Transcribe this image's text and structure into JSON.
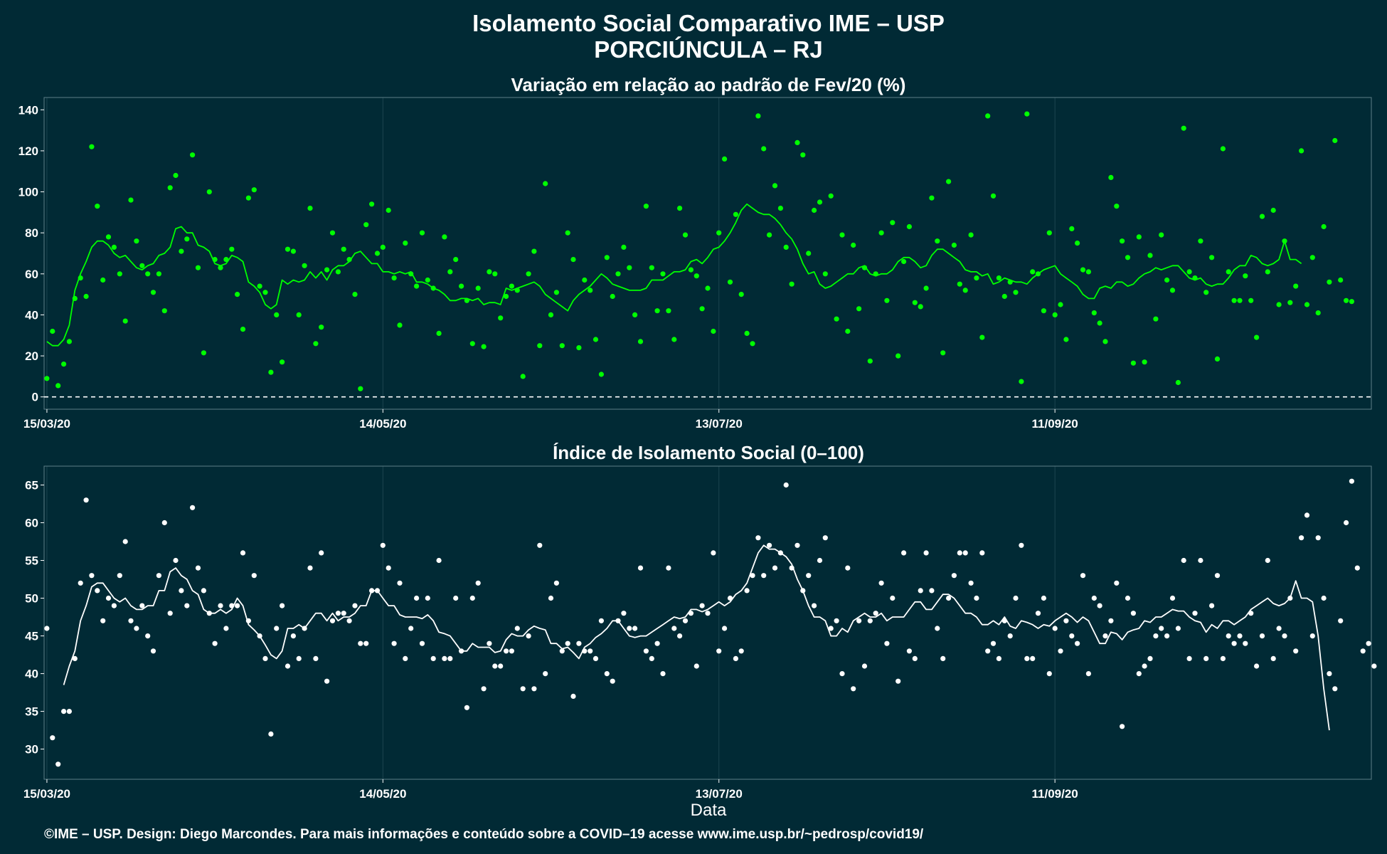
{
  "title_line1": "Isolamento Social Comparativo IME – USP",
  "title_line2": "PORCIÚNCULA – RJ",
  "xlabel": "Data",
  "footer": "©IME – USP. Design: Diego Marcondes. Para mais informações e conteúdo sobre a COVID–19 acesse www.ime.usp.br/~pedrosp/covid19/",
  "colors": {
    "background": "#012a35",
    "series_top": "#00ff00",
    "series_bottom": "#ffffff",
    "grid": "#1c4550"
  },
  "chart_data": [
    {
      "type": "scatter",
      "title": "Variação em relação ao padrão de Fev/20 (%)",
      "x_start": "15/03/20",
      "x_ticks": [
        "15/03/20",
        "14/05/20",
        "13/07/20",
        "11/09/20"
      ],
      "y_ticks": [
        0,
        20,
        40,
        60,
        80,
        100,
        120,
        140
      ],
      "ylim": [
        -6,
        146
      ],
      "xlim_days": [
        -0.5,
        236.5
      ],
      "reference_line_y": 0,
      "points": [
        9,
        32,
        5.5,
        16,
        27,
        48,
        58,
        49,
        122,
        93,
        57,
        78,
        73,
        60,
        37,
        96,
        76,
        64,
        60,
        51,
        60,
        42,
        102,
        108,
        71,
        77,
        118,
        63,
        21.5,
        100,
        67,
        63,
        67,
        72,
        50,
        33,
        97,
        101,
        54,
        51,
        12,
        40,
        17,
        72,
        71,
        40,
        64,
        92,
        26,
        34,
        62,
        80,
        61,
        72,
        67,
        50,
        4,
        84,
        94,
        70,
        73,
        91,
        58,
        35,
        75,
        60,
        54,
        80,
        57,
        53,
        31,
        78,
        61,
        67,
        54,
        47,
        26,
        53,
        24.5,
        61,
        60,
        38.5,
        49,
        54,
        52,
        10,
        60,
        71,
        25,
        104,
        40,
        51,
        25,
        80,
        67,
        24,
        57,
        52,
        28,
        11,
        68,
        49,
        60,
        73,
        63,
        40,
        27,
        93,
        63,
        42,
        60,
        42,
        28,
        92,
        79,
        62,
        59,
        43,
        53,
        32,
        80,
        116,
        56,
        89,
        50,
        31,
        26,
        137,
        121,
        79,
        103,
        92,
        73,
        55,
        124,
        118,
        70,
        91,
        95,
        60,
        98,
        38,
        79,
        32,
        74,
        43,
        63,
        17.5,
        60,
        80,
        47,
        85,
        20,
        66,
        83,
        46,
        44,
        53,
        97,
        76,
        21.5,
        105,
        74,
        55,
        52,
        79,
        58,
        29,
        137,
        98,
        58,
        49,
        56,
        51,
        7.5,
        138,
        61,
        60,
        42,
        80,
        40,
        45,
        28,
        82,
        75,
        62,
        61,
        41,
        36,
        27,
        107,
        93,
        76,
        68,
        16.5,
        78,
        17,
        69,
        38,
        79,
        57,
        52,
        7,
        131,
        61,
        58,
        76,
        51,
        68,
        18.5,
        121,
        61,
        47,
        47,
        59,
        47,
        29,
        88,
        61,
        91,
        45,
        76,
        46,
        54,
        120,
        45,
        68,
        41,
        83,
        56,
        125,
        57,
        47,
        46.5
      ],
      "ma_start_day": 0,
      "moving_average": [
        27,
        25,
        25,
        28,
        35,
        52,
        60,
        66,
        73,
        76,
        76,
        74,
        70,
        68,
        69,
        66,
        63,
        62,
        64,
        65,
        69,
        70,
        73,
        82,
        83,
        80,
        80,
        74,
        73,
        71,
        65,
        64,
        65,
        69,
        68,
        66,
        56,
        54,
        51,
        45,
        43,
        45,
        57,
        55,
        57,
        56,
        57,
        61,
        58,
        61,
        57,
        62,
        64,
        64,
        66,
        70,
        71,
        68,
        65,
        65,
        61,
        61,
        60,
        61,
        60,
        61,
        56,
        56,
        55,
        53,
        52,
        50,
        47,
        47,
        48,
        48,
        47,
        48,
        45,
        46,
        46,
        45,
        53,
        52,
        53,
        54,
        55,
        56,
        54,
        50,
        48,
        46,
        44,
        42,
        47,
        50,
        52,
        54,
        57,
        60,
        58,
        55,
        54,
        53,
        52,
        52,
        52,
        53,
        57,
        57,
        57,
        59,
        61,
        61,
        62,
        66,
        67,
        65,
        68,
        72,
        73,
        76,
        80,
        85,
        91,
        94,
        92,
        90,
        89,
        89,
        87,
        84,
        80,
        77,
        72,
        65,
        60,
        61,
        55,
        53,
        54,
        56,
        58,
        60,
        60,
        63,
        64,
        60,
        59,
        60,
        60,
        62,
        66,
        68,
        68,
        66,
        63,
        64,
        69,
        72,
        72,
        70,
        68,
        66,
        62,
        61,
        61,
        59,
        60,
        55,
        56,
        58,
        57,
        56,
        56,
        55,
        58,
        60,
        62,
        63,
        64,
        60,
        58,
        56,
        54,
        50,
        48,
        48,
        53,
        54,
        53,
        56,
        56,
        54,
        55,
        58,
        60,
        61,
        63,
        62,
        63,
        64,
        64,
        61,
        58,
        57,
        58,
        55,
        54,
        55,
        55,
        58,
        62,
        64,
        64,
        69,
        68,
        65,
        64,
        65,
        67,
        76,
        67,
        67,
        65
      ]
    },
    {
      "type": "scatter",
      "title": "Índice de Isolamento Social (0–100)",
      "x_start": "15/03/20",
      "x_ticks": [
        "15/03/20",
        "14/05/20",
        "13/07/20",
        "11/09/20"
      ],
      "y_ticks": [
        30,
        35,
        40,
        45,
        50,
        55,
        60,
        65
      ],
      "ylim": [
        26,
        67.5
      ],
      "xlim_days": [
        -0.5,
        236.5
      ],
      "points": [
        46,
        31.5,
        28,
        35,
        35,
        42,
        52,
        63,
        53,
        51,
        47,
        50,
        49,
        53,
        57.5,
        47,
        46,
        49,
        45,
        43,
        53,
        60,
        48,
        55,
        51,
        49,
        62,
        54,
        51,
        48,
        44,
        49,
        46,
        49,
        49,
        56,
        47,
        53,
        45,
        42,
        32,
        46,
        49,
        41,
        45,
        42,
        46,
        54,
        42,
        56,
        39,
        47,
        48,
        48,
        47,
        49,
        44,
        44,
        51,
        51,
        57,
        54,
        44,
        52,
        42,
        46,
        50,
        44,
        50,
        42,
        55,
        42,
        42,
        50,
        43,
        35.5,
        50,
        52,
        38,
        44,
        41,
        41,
        43,
        43,
        46,
        38,
        45,
        38,
        57,
        40,
        50,
        52,
        43,
        44,
        37,
        44,
        43,
        43,
        42,
        47,
        40,
        39,
        47,
        48,
        46,
        46,
        54,
        43,
        42,
        44,
        40,
        54,
        46,
        45,
        47,
        48,
        41,
        49,
        48,
        56,
        43,
        46,
        50,
        42,
        43,
        51,
        53,
        58,
        53,
        57,
        54,
        56,
        65,
        54,
        57,
        51,
        53,
        49,
        55,
        58,
        46,
        47,
        40,
        54,
        38,
        47,
        41,
        47,
        48,
        52,
        44,
        50,
        39,
        56,
        43,
        42,
        51,
        56,
        51,
        46,
        42,
        50,
        53,
        56,
        56,
        52,
        50,
        56,
        43,
        44,
        42,
        47,
        45,
        50,
        57,
        42,
        42,
        48,
        50,
        40,
        46,
        43,
        47,
        45,
        44,
        53,
        40,
        50,
        49,
        45,
        47,
        52,
        33,
        50,
        48,
        40,
        41,
        42,
        45,
        46,
        45,
        50,
        46,
        55,
        42,
        48,
        55,
        42,
        49,
        53,
        42,
        45,
        44,
        45,
        44,
        48,
        41,
        45,
        55,
        42,
        46,
        45,
        50,
        43,
        58,
        61,
        45,
        58,
        50,
        40,
        38,
        47,
        60,
        65.5,
        54,
        43,
        44,
        41
      ],
      "ma_start_day": 3,
      "moving_average": [
        38.5,
        41,
        43,
        47,
        49,
        51.5,
        52,
        52,
        51,
        50,
        49.5,
        50,
        49,
        48.5,
        48.5,
        49,
        49,
        51,
        51,
        53.5,
        54,
        53,
        52.5,
        51,
        50.5,
        48.5,
        48,
        48,
        48.5,
        48,
        48.5,
        50,
        49,
        46.5,
        45.8,
        45,
        43.8,
        42.5,
        42,
        43,
        46,
        46,
        46.5,
        46,
        47,
        48,
        48,
        47,
        48,
        47,
        47.5,
        47.5,
        48,
        49,
        49,
        51,
        51,
        50,
        49,
        49,
        47.8,
        47.5,
        47.5,
        47.5,
        47.3,
        47.8,
        47,
        45.5,
        45.3,
        45,
        44,
        43,
        43,
        44,
        43.5,
        43.5,
        43.5,
        42.8,
        43,
        44.5,
        45.3,
        45,
        45,
        45.8,
        46.3,
        46,
        45.8,
        44,
        44,
        43.3,
        43.5,
        42.8,
        42,
        43.5,
        44,
        44.8,
        45.3,
        46,
        47,
        47,
        46,
        45,
        44.8,
        45,
        45,
        45.5,
        46,
        46.5,
        47,
        47.5,
        47.3,
        47.5,
        48.5,
        48.5,
        48.2,
        48.5,
        49,
        49.5,
        49,
        49.5,
        50.5,
        51,
        52,
        54,
        56,
        57,
        56.5,
        56.5,
        56,
        55.5,
        54.5,
        52.5,
        51,
        49,
        47.5,
        47.5,
        47,
        45,
        45,
        46,
        45.5,
        47,
        47.5,
        48,
        47.5,
        47.5,
        48,
        47,
        47.5,
        47.5,
        47.5,
        48.5,
        49.5,
        49.5,
        48.5,
        48.5,
        49.5,
        50.5,
        50.5,
        50,
        49,
        48,
        48,
        47.5,
        46.5,
        46.5,
        47,
        46.5,
        47.5,
        46.3,
        46,
        47,
        46.8,
        46.5,
        46,
        46.5,
        46.3,
        47,
        47.5,
        48,
        47.5,
        46.8,
        47.5,
        47,
        45.5,
        44,
        44,
        45.5,
        45.3,
        44.5,
        45.5,
        45.8,
        46,
        47,
        46.8,
        47.5,
        47.5,
        48,
        48.5,
        48.3,
        48.3,
        47.5,
        47,
        46.8,
        45.5,
        46.5,
        46,
        47,
        47,
        46.5,
        47,
        47.5,
        48.5,
        49,
        49.5,
        50,
        49.3,
        49,
        49.3,
        50,
        52.3,
        50,
        50,
        49.5,
        45,
        38,
        32.5
      ]
    }
  ]
}
